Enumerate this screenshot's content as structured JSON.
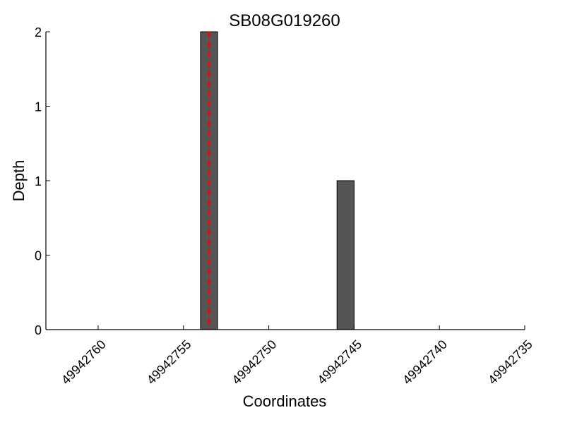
{
  "chart_data": {
    "type": "bar",
    "title": "SB08G019260",
    "xlabel": "Coordinates",
    "ylabel": "Depth",
    "xlim": [
      49942763.06,
      49942735
    ],
    "x_reversed": true,
    "ylim": [
      0,
      2
    ],
    "xticks": [
      49942760,
      49942755,
      49942750,
      49942745,
      49942740,
      49942735
    ],
    "xtick_labels": [
      "49942760",
      "49942755",
      "49942750",
      "49942745",
      "49942740",
      "49942735"
    ],
    "yticks": [
      0,
      0.5,
      1,
      1.5,
      2
    ],
    "ytick_labels": [
      "0",
      "0",
      "1",
      "1",
      "2"
    ],
    "bars": [
      {
        "x_start": 49942754,
        "x_end": 49942753,
        "value": 2
      },
      {
        "x_start": 49942746,
        "x_end": 49942745,
        "value": 1
      }
    ],
    "marker_line": {
      "x": 49942753.5,
      "style": "dashed",
      "color": "#ff0000"
    },
    "bar_color": "#555555",
    "grid": false
  }
}
